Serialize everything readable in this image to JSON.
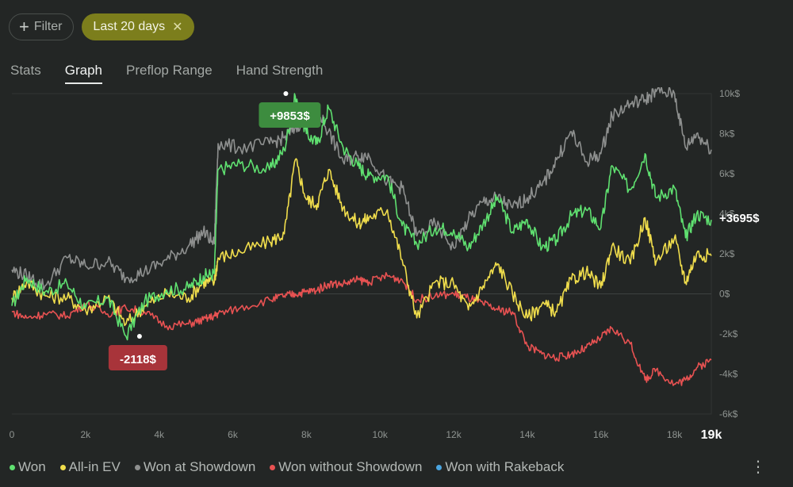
{
  "filters": {
    "add_label": "Filter",
    "active_label": "Last 20 days"
  },
  "tabs": [
    "Stats",
    "Graph",
    "Preflop Range",
    "Hand Strength"
  ],
  "active_tab": "Graph",
  "menu_icon": "more-vertical-icon",
  "chart_data": {
    "type": "line",
    "x_ticks": [
      "0",
      "2k",
      "4k",
      "6k",
      "8k",
      "10k",
      "12k",
      "14k",
      "16k",
      "18k"
    ],
    "x_end_label": "19k",
    "y_ticks": [
      "10k$",
      "8k$",
      "6k$",
      "4k$",
      "2k$",
      "0$",
      "-2k$",
      "-4k$",
      "-6k$"
    ],
    "xlim": [
      0,
      19000
    ],
    "ylim": [
      -6000,
      10000
    ],
    "annotations": {
      "max": {
        "label": "+9853$",
        "x": 7700,
        "y": 9853,
        "color": "#3d8c3f"
      },
      "min": {
        "label": "-2118$",
        "x": 3100,
        "y": -2118,
        "color": "#a8343a"
      },
      "final": {
        "label": "+3695$"
      }
    },
    "series": [
      {
        "name": "Won",
        "color": "#5fe070",
        "in_legend": true,
        "points": [
          [
            0,
            -600
          ],
          [
            400,
            800
          ],
          [
            900,
            100
          ],
          [
            1500,
            500
          ],
          [
            2000,
            -700
          ],
          [
            2600,
            -200
          ],
          [
            3100,
            -2118
          ],
          [
            3600,
            -400
          ],
          [
            4200,
            200
          ],
          [
            4800,
            300
          ],
          [
            5200,
            900
          ],
          [
            5500,
            1000
          ],
          [
            5600,
            6200
          ],
          [
            6200,
            6500
          ],
          [
            7000,
            6200
          ],
          [
            7400,
            7200
          ],
          [
            7700,
            9853
          ],
          [
            8000,
            8000
          ],
          [
            8300,
            7500
          ],
          [
            8600,
            9300
          ],
          [
            9000,
            7300
          ],
          [
            9400,
            6400
          ],
          [
            9700,
            5900
          ],
          [
            10200,
            5900
          ],
          [
            10600,
            3400
          ],
          [
            11000,
            2500
          ],
          [
            11500,
            3300
          ],
          [
            12000,
            3200
          ],
          [
            12400,
            2300
          ],
          [
            12800,
            3500
          ],
          [
            13200,
            4800
          ],
          [
            13600,
            3100
          ],
          [
            14000,
            3700
          ],
          [
            14400,
            2300
          ],
          [
            14800,
            2700
          ],
          [
            15200,
            3900
          ],
          [
            15600,
            4200
          ],
          [
            16000,
            3300
          ],
          [
            16300,
            6400
          ],
          [
            16800,
            5200
          ],
          [
            17200,
            7000
          ],
          [
            17500,
            4800
          ],
          [
            18000,
            5300
          ],
          [
            18300,
            2800
          ],
          [
            18600,
            4000
          ],
          [
            19000,
            3695
          ]
        ]
      },
      {
        "name": "All-in EV",
        "color": "#f0dd4c",
        "in_legend": true,
        "points": [
          [
            0,
            -200
          ],
          [
            400,
            600
          ],
          [
            900,
            -100
          ],
          [
            1500,
            -200
          ],
          [
            2000,
            -800
          ],
          [
            2600,
            -200
          ],
          [
            3100,
            -1500
          ],
          [
            3600,
            -600
          ],
          [
            4200,
            0
          ],
          [
            4800,
            -200
          ],
          [
            5200,
            600
          ],
          [
            5500,
            600
          ],
          [
            5600,
            1800
          ],
          [
            6200,
            2100
          ],
          [
            7000,
            2600
          ],
          [
            7400,
            3000
          ],
          [
            7700,
            6700
          ],
          [
            8000,
            4700
          ],
          [
            8300,
            4500
          ],
          [
            8600,
            6200
          ],
          [
            9000,
            4300
          ],
          [
            9400,
            3500
          ],
          [
            9700,
            3800
          ],
          [
            10200,
            4200
          ],
          [
            10600,
            1700
          ],
          [
            11000,
            -1200
          ],
          [
            11500,
            600
          ],
          [
            12000,
            500
          ],
          [
            12400,
            -800
          ],
          [
            12800,
            400
          ],
          [
            13200,
            1500
          ],
          [
            13600,
            0
          ],
          [
            14000,
            -1200
          ],
          [
            14400,
            -500
          ],
          [
            14800,
            -900
          ],
          [
            15200,
            700
          ],
          [
            15600,
            1100
          ],
          [
            16000,
            300
          ],
          [
            16300,
            2400
          ],
          [
            16800,
            1500
          ],
          [
            17200,
            3800
          ],
          [
            17500,
            1600
          ],
          [
            18000,
            2800
          ],
          [
            18300,
            600
          ],
          [
            18600,
            2000
          ],
          [
            19000,
            1900
          ]
        ]
      },
      {
        "name": "Won at Showdown",
        "color": "#8e908f",
        "in_legend": true,
        "points": [
          [
            0,
            1200
          ],
          [
            400,
            900
          ],
          [
            900,
            400
          ],
          [
            1500,
            1800
          ],
          [
            2000,
            1400
          ],
          [
            2600,
            1600
          ],
          [
            3100,
            800
          ],
          [
            3600,
            1100
          ],
          [
            4200,
            1700
          ],
          [
            4800,
            2400
          ],
          [
            5200,
            3100
          ],
          [
            5500,
            2500
          ],
          [
            5600,
            7500
          ],
          [
            6200,
            7300
          ],
          [
            7000,
            7500
          ],
          [
            7400,
            7800
          ],
          [
            7700,
            8300
          ],
          [
            8000,
            8800
          ],
          [
            8300,
            9200
          ],
          [
            8600,
            8100
          ],
          [
            9000,
            6600
          ],
          [
            9400,
            6900
          ],
          [
            9700,
            6900
          ],
          [
            10200,
            5600
          ],
          [
            10600,
            5300
          ],
          [
            11000,
            2900
          ],
          [
            11500,
            3500
          ],
          [
            12000,
            2300
          ],
          [
            12400,
            3700
          ],
          [
            12800,
            4600
          ],
          [
            13200,
            4800
          ],
          [
            13600,
            4300
          ],
          [
            14000,
            4800
          ],
          [
            14400,
            5400
          ],
          [
            14800,
            6700
          ],
          [
            15200,
            8100
          ],
          [
            15600,
            6600
          ],
          [
            16000,
            7000
          ],
          [
            16300,
            8900
          ],
          [
            16800,
            9500
          ],
          [
            17200,
            9700
          ],
          [
            17500,
            10100
          ],
          [
            18000,
            10000
          ],
          [
            18300,
            7300
          ],
          [
            18600,
            8000
          ],
          [
            19000,
            7200
          ]
        ]
      },
      {
        "name": "Won without Showdown",
        "color": "#e85252",
        "in_legend": true,
        "points": [
          [
            0,
            -900
          ],
          [
            400,
            -1200
          ],
          [
            900,
            -1000
          ],
          [
            1500,
            -1100
          ],
          [
            2000,
            -500
          ],
          [
            2600,
            -1000
          ],
          [
            3100,
            -700
          ],
          [
            3600,
            -900
          ],
          [
            4200,
            -1600
          ],
          [
            4800,
            -1500
          ],
          [
            5200,
            -1300
          ],
          [
            5500,
            -1100
          ],
          [
            5600,
            -1000
          ],
          [
            6200,
            -700
          ],
          [
            7000,
            -300
          ],
          [
            7400,
            -100
          ],
          [
            7700,
            0
          ],
          [
            8000,
            100
          ],
          [
            8300,
            200
          ],
          [
            8600,
            500
          ],
          [
            9000,
            500
          ],
          [
            9400,
            700
          ],
          [
            9700,
            600
          ],
          [
            10200,
            900
          ],
          [
            10600,
            700
          ],
          [
            11000,
            -300
          ],
          [
            11500,
            -100
          ],
          [
            12000,
            0
          ],
          [
            12400,
            -200
          ],
          [
            12800,
            -500
          ],
          [
            13200,
            -800
          ],
          [
            13600,
            -900
          ],
          [
            14000,
            -2600
          ],
          [
            14400,
            -3000
          ],
          [
            14800,
            -3200
          ],
          [
            15200,
            -3000
          ],
          [
            15600,
            -2700
          ],
          [
            16000,
            -2200
          ],
          [
            16300,
            -1700
          ],
          [
            16800,
            -2500
          ],
          [
            17200,
            -4300
          ],
          [
            17500,
            -3800
          ],
          [
            18000,
            -4500
          ],
          [
            18300,
            -4300
          ],
          [
            18600,
            -3700
          ],
          [
            19000,
            -3300
          ]
        ]
      },
      {
        "name": "Won with Rakeback",
        "color": "#4aa5e0",
        "in_legend": true,
        "points": []
      }
    ]
  }
}
